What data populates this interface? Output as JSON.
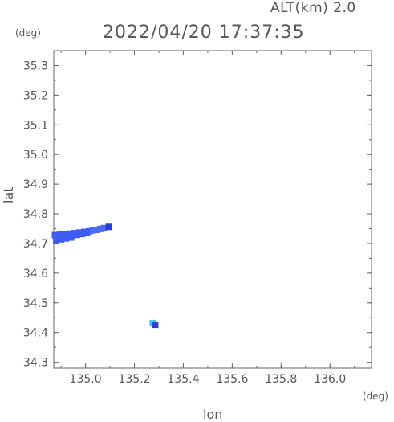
{
  "header": {
    "altitude_label": "ALT(km) 2.0",
    "datetime": "2022/04/20 17:37:35"
  },
  "axes": {
    "x_unit": "(deg)",
    "y_unit": "(deg)",
    "x_label": "lon",
    "y_label": "lat"
  },
  "chart_data": {
    "type": "scatter",
    "xlim": [
      134.87,
      136.17
    ],
    "ylim": [
      34.28,
      35.35
    ],
    "x_ticks": [
      "135.0",
      "135.2",
      "135.4",
      "135.6",
      "135.8",
      "136.0"
    ],
    "x_tick_values": [
      135.0,
      135.2,
      135.4,
      135.6,
      135.8,
      136.0
    ],
    "y_ticks": [
      "34.3",
      "34.4",
      "34.5",
      "34.6",
      "34.7",
      "34.8",
      "34.9",
      "35.0",
      "35.1",
      "35.2",
      "35.3"
    ],
    "y_tick_values": [
      34.3,
      34.4,
      34.5,
      34.6,
      34.7,
      34.8,
      34.9,
      35.0,
      35.1,
      35.2,
      35.3
    ],
    "grid": false,
    "points": [
      {
        "lon": 134.875,
        "lat": 34.728,
        "color": "#3d5cf5"
      },
      {
        "lon": 134.885,
        "lat": 34.722,
        "color": "#3d5cf5"
      },
      {
        "lon": 134.895,
        "lat": 34.73,
        "color": "#3d5cf5"
      },
      {
        "lon": 134.905,
        "lat": 34.725,
        "color": "#3d5cf5"
      },
      {
        "lon": 134.915,
        "lat": 34.731,
        "color": "#3d5cf5"
      },
      {
        "lon": 134.925,
        "lat": 34.726,
        "color": "#3d5cf5"
      },
      {
        "lon": 134.935,
        "lat": 34.733,
        "color": "#3d5cf5"
      },
      {
        "lon": 134.945,
        "lat": 34.727,
        "color": "#3d5cf5"
      },
      {
        "lon": 134.955,
        "lat": 34.735,
        "color": "#3d5cf5"
      },
      {
        "lon": 134.965,
        "lat": 34.729,
        "color": "#3d5cf5"
      },
      {
        "lon": 134.975,
        "lat": 34.737,
        "color": "#3d5cf5"
      },
      {
        "lon": 134.985,
        "lat": 34.732,
        "color": "#3d5cf5"
      },
      {
        "lon": 134.995,
        "lat": 34.739,
        "color": "#3d5cf5"
      },
      {
        "lon": 135.005,
        "lat": 34.735,
        "color": "#3d5cf5"
      },
      {
        "lon": 135.015,
        "lat": 34.741,
        "color": "#3d5cf5"
      },
      {
        "lon": 135.03,
        "lat": 34.744,
        "color": "#4a6df7"
      },
      {
        "lon": 135.045,
        "lat": 34.746,
        "color": "#4a6df7"
      },
      {
        "lon": 135.06,
        "lat": 34.749,
        "color": "#4a6df7"
      },
      {
        "lon": 135.075,
        "lat": 34.752,
        "color": "#4a6df7"
      },
      {
        "lon": 135.095,
        "lat": 34.756,
        "color": "#2a3fd8"
      },
      {
        "lon": 134.88,
        "lat": 34.712,
        "color": "#3d5cf5"
      },
      {
        "lon": 134.9,
        "lat": 34.714,
        "color": "#3d5cf5"
      },
      {
        "lon": 134.92,
        "lat": 34.717,
        "color": "#3d5cf5"
      },
      {
        "lon": 134.94,
        "lat": 34.72,
        "color": "#3d5cf5"
      },
      {
        "lon": 135.275,
        "lat": 34.432,
        "color": "#39c6ef"
      },
      {
        "lon": 135.285,
        "lat": 34.426,
        "color": "#2a3fd8"
      }
    ]
  }
}
